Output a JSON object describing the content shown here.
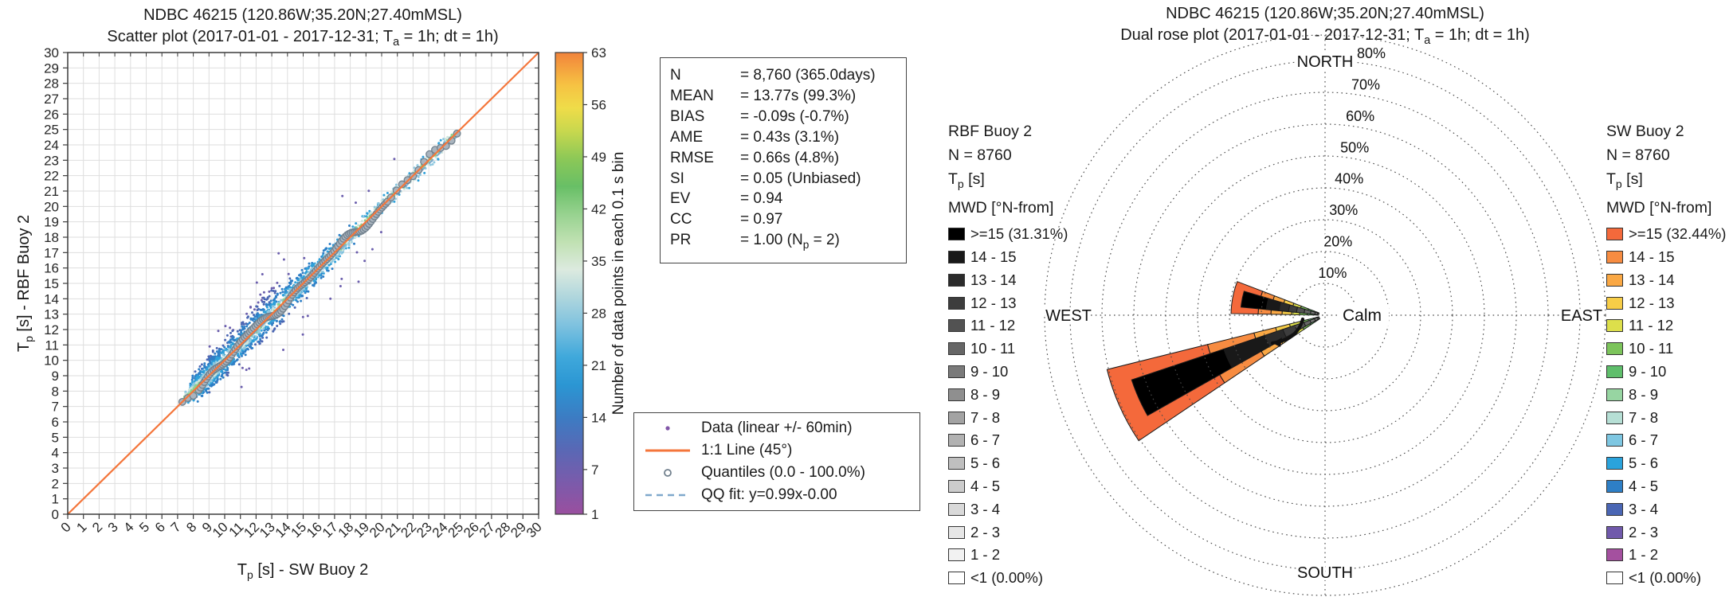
{
  "scatter_panel": {
    "title1": "NDBC 46215 (120.86W;35.20N;27.40mMSL)",
    "title2": {
      "pre": "Scatter plot  (2017-01-01 - 2017-12-31; T",
      "sub": "a",
      "post": " = 1h; dt = 1h)"
    },
    "stats": {
      "rows": [
        {
          "label": "N",
          "value": "8,760 (365.0days)"
        },
        {
          "label": "MEAN",
          "value": "13.77s (99.3%)"
        },
        {
          "label": "BIAS",
          "value": "-0.09s (-0.7%)"
        },
        {
          "label": "AME",
          "value": "0.43s (3.1%)"
        },
        {
          "label": "RMSE",
          "value": "0.66s (4.8%)"
        },
        {
          "label": "SI",
          "value": "0.05 (Unbiased)"
        },
        {
          "label": "EV",
          "value": "0.94"
        },
        {
          "label": "CC",
          "value": "0.97"
        },
        {
          "label": "PR",
          "value_pre": "1.00 (N",
          "value_sub": "p",
          "value_post": " = 2)"
        }
      ]
    },
    "legend": [
      {
        "marker": "dot",
        "color": "#8156A8",
        "label": "Data (linear +/- 60min)"
      },
      {
        "marker": "line",
        "color": "#F4763B",
        "label": "1:1 Line (45°)"
      },
      {
        "marker": "open-circle",
        "color": "#71808D",
        "label": "Quantiles (0.0 - 100.0%)"
      },
      {
        "marker": "dashed-line",
        "color": "#7FA8CC",
        "label": "QQ fit: y=0.99x-0.00"
      }
    ]
  },
  "rose_panel": {
    "title1": "NDBC 46215 (120.86W;35.20N;27.40mMSL)",
    "title2": {
      "pre": "Dual rose plot  (2017-01-01 - 2017-12-31; T",
      "sub": "a",
      "post": " = 1h; dt = 1h)"
    },
    "legend_left": {
      "name": "RBF Buoy 2",
      "n": "N = 8760",
      "tp_pre": "T",
      "tp_sub": "p",
      "tp_post": " [s]",
      "mwd": "MWD [°N-from]"
    },
    "legend_right": {
      "name": "SW Buoy 2",
      "n": "N = 8760",
      "tp_pre": "T",
      "tp_sub": "p",
      "tp_post": " [s]",
      "mwd": "MWD [°N-from]"
    }
  },
  "chart_data": [
    {
      "type": "scatter",
      "title": "NDBC 46215 scatter of peak wave period: RBF Buoy 2 vs SW Buoy 2",
      "xlabel": {
        "pre": "T",
        "sub": "p",
        "post": " [s] - SW Buoy 2"
      },
      "ylabel": {
        "pre": "T",
        "sub": "p",
        "post": " [s] - RBF Buoy 2"
      },
      "xlim": [
        0,
        30
      ],
      "ylim": [
        0,
        30
      ],
      "tick_step": 1,
      "grid": true,
      "identity_line": {
        "label": "1:1 Line (45°)",
        "color": "#F4763B",
        "from": [
          0,
          0
        ],
        "to": [
          30,
          30
        ]
      },
      "qq_fit": {
        "equation": "y=0.99x-0.00",
        "slope": 0.99,
        "intercept": 0.0,
        "color": "#7FA8CC",
        "extent": [
          7.2,
          24.9
        ]
      },
      "quantiles": {
        "range_pct": [
          0.0,
          100.0
        ],
        "extent": [
          7.3,
          24.8
        ],
        "fill": "#A9B4BE",
        "stroke": "#71808D"
      },
      "cloud": {
        "n": 8760,
        "x_extent": [
          7.2,
          24.9
        ],
        "max_bin_count": 63,
        "note": "hourly Tp pairs clustered along the 1:1 diagonal between ~7s and ~25s, typical spread ±1.5s, outliers to ±4s, densest between 8s and 18s",
        "density_colors": [
          "#6B5EAD",
          "#4B66B3",
          "#2E7FC6",
          "#2FA0D9",
          "#8FC8E0",
          "#CFE6DE",
          "#8FCF8C"
        ]
      },
      "colorbar": {
        "label": "Number of data points in each 0.1 s bin",
        "ticks": [
          1,
          7,
          14,
          21,
          28,
          35,
          42,
          49,
          56,
          63
        ],
        "min": 1,
        "max": 63,
        "stops": [
          {
            "o": 0.0,
            "c": "#9A4F9F"
          },
          {
            "o": 0.07,
            "c": "#7A5BAB"
          },
          {
            "o": 0.14,
            "c": "#5968B5"
          },
          {
            "o": 0.21,
            "c": "#3C7CC3"
          },
          {
            "o": 0.28,
            "c": "#2B96D3"
          },
          {
            "o": 0.34,
            "c": "#3FA8DB"
          },
          {
            "o": 0.41,
            "c": "#7FC2DF"
          },
          {
            "o": 0.47,
            "c": "#AFD6DD"
          },
          {
            "o": 0.53,
            "c": "#DCEADF"
          },
          {
            "o": 0.59,
            "c": "#C0E1B2"
          },
          {
            "o": 0.65,
            "c": "#97D28F"
          },
          {
            "o": 0.71,
            "c": "#68BF66"
          },
          {
            "o": 0.77,
            "c": "#8CC857"
          },
          {
            "o": 0.83,
            "c": "#C8D84E"
          },
          {
            "o": 0.88,
            "c": "#EFDC49"
          },
          {
            "o": 0.93,
            "c": "#F6C243"
          },
          {
            "o": 1.0,
            "c": "#F2833B"
          }
        ]
      },
      "stats": {
        "N": "8,760 (365.0days)",
        "MEAN": "13.77s (99.3%)",
        "BIAS": "-0.09s (-0.7%)",
        "AME": "0.43s (3.1%)",
        "RMSE": "0.66s (4.8%)",
        "SI": "0.05 (Unbiased)",
        "EV": "0.94",
        "CC": "0.97",
        "PR": "1.00 (Np = 2)"
      }
    },
    {
      "type": "rose",
      "title": "Dual rose of mean wave direction by peak period class",
      "rings_pct": [
        10,
        20,
        30,
        40,
        50,
        60,
        70,
        80
      ],
      "ring_label_suffix": "%",
      "cardinals": {
        "north": "NORTH",
        "east": "EAST",
        "south": "SOUTH",
        "west": "WEST"
      },
      "calm_label": "Calm",
      "bins": [
        "<1",
        "1 - 2",
        "2 - 3",
        "3 - 4",
        "4 - 5",
        "5 - 6",
        "6 - 7",
        "7 - 8",
        "8 - 9",
        "9 - 10",
        "10 - 11",
        "11 - 12",
        "12 - 13",
        "13 - 14",
        "14 - 15",
        ">=15"
      ],
      "sw_colors": [
        "#FFFFFF",
        "#A4509F",
        "#7059AB",
        "#4A66B4",
        "#2E7FC6",
        "#2AA3DC",
        "#7EC7E2",
        "#B6DFD5",
        "#97D5A2",
        "#5FBE6B",
        "#7CC45B",
        "#DDDF4B",
        "#F7CD47",
        "#FAA844",
        "#F78C41",
        "#F4693B"
      ],
      "rbf_colors": [
        "#FFFFFF",
        "#F2F2F2",
        "#E6E6E6",
        "#D9D9D9",
        "#CCCCCC",
        "#BFBFBF",
        "#B2B2B2",
        "#A3A3A3",
        "#8F8F8F",
        "#7A7A7A",
        "#666666",
        "#525252",
        "#3D3D3D",
        "#2B2B2B",
        "#191919",
        "#000000"
      ],
      "legend_labels_rbf": [
        ">=15 (31.31%)",
        "14 - 15",
        "13 - 14",
        "12 - 13",
        "11 - 12",
        "10 - 11",
        "9 - 10",
        "8 - 9",
        "7 - 8",
        "6 - 7",
        "5 - 6",
        "4 - 5",
        "3 - 4",
        "2 - 3",
        "1 - 2",
        "<1 (0.00%)"
      ],
      "legend_labels_sw": [
        ">=15 (32.44%)",
        "14 - 15",
        "13 - 14",
        "12 - 13",
        "11 - 12",
        "10 - 11",
        "9 - 10",
        "8 - 9",
        "7 - 8",
        "6 - 7",
        "5 - 6",
        "4 - 5",
        "3 - 4",
        "2 - 3",
        "1 - 2",
        "<1 (0.00%)"
      ],
      "petals": [
        {
          "dir_deg": 281,
          "sw_half_deg": 10,
          "rbf_half_deg": 5.5,
          "sw_segments": [
            [
              7,
              2.0,
              2.5
            ],
            [
              8,
              2.5,
              3.6
            ],
            [
              9,
              3.6,
              5.6
            ],
            [
              10,
              5.6,
              8.0
            ],
            [
              11,
              8.0,
              10.5
            ],
            [
              12,
              10.5,
              13.5
            ],
            [
              13,
              13.5,
              17.0
            ],
            [
              14,
              17.0,
              21.0
            ],
            [
              15,
              21.0,
              29.5
            ]
          ],
          "rbf_segments": [
            [
              7,
              2.0,
              2.4
            ],
            [
              8,
              2.4,
              3.2
            ],
            [
              9,
              3.2,
              4.6
            ],
            [
              10,
              4.6,
              6.6
            ],
            [
              11,
              6.6,
              9.0
            ],
            [
              12,
              9.0,
              11.5
            ],
            [
              13,
              11.5,
              14.5
            ],
            [
              14,
              14.5,
              18.5
            ],
            [
              15,
              18.5,
              26.5
            ]
          ]
        },
        {
          "dir_deg": 246,
          "sw_half_deg": 10,
          "rbf_half_deg": 5.5,
          "sw_segments": [
            [
              7,
              2.0,
              2.6
            ],
            [
              8,
              2.6,
              3.8
            ],
            [
              9,
              3.8,
              5.5
            ],
            [
              10,
              5.5,
              8.0
            ],
            [
              11,
              8.0,
              11.5
            ],
            [
              12,
              11.5,
              16.0
            ],
            [
              13,
              16.0,
              23.0
            ],
            [
              14,
              23.0,
              38.0
            ],
            [
              15,
              38.0,
              70.5
            ]
          ],
          "rbf_segments": [
            [
              7,
              2.0,
              2.5
            ],
            [
              8,
              2.5,
              3.5
            ],
            [
              9,
              3.5,
              5.0
            ],
            [
              10,
              5.0,
              7.0
            ],
            [
              11,
              7.0,
              10.0
            ],
            [
              12,
              10.0,
              14.0
            ],
            [
              13,
              14.0,
              20.0
            ],
            [
              14,
              20.0,
              33.5
            ],
            [
              15,
              33.5,
              64.0
            ]
          ]
        }
      ]
    }
  ]
}
